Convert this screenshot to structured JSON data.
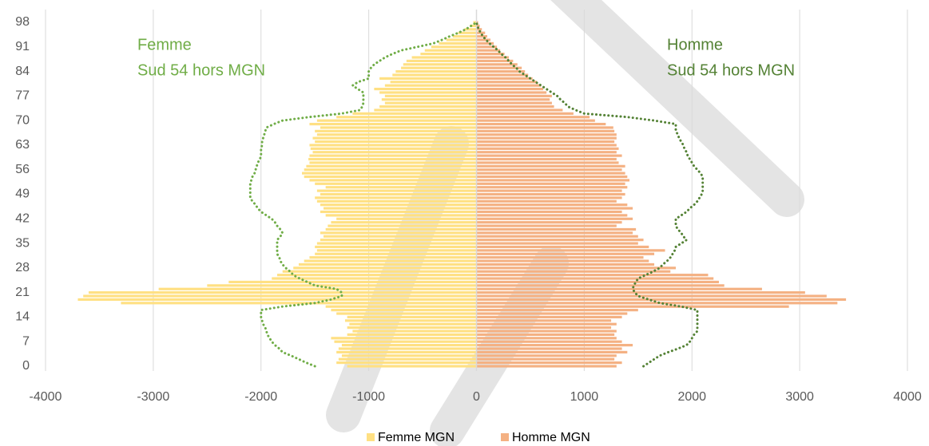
{
  "chart_data": {
    "type": "pyramid",
    "categories": [
      0,
      null,
      null,
      null,
      null,
      null,
      null,
      7,
      null,
      null,
      null,
      null,
      null,
      null,
      14,
      null,
      null,
      null,
      null,
      null,
      null,
      21,
      null,
      null,
      null,
      null,
      null,
      null,
      28,
      null,
      null,
      null,
      null,
      null,
      null,
      35,
      null,
      null,
      null,
      null,
      null,
      null,
      42,
      null,
      null,
      null,
      null,
      null,
      null,
      49,
      null,
      null,
      null,
      null,
      null,
      null,
      56,
      null,
      null,
      null,
      null,
      null,
      null,
      63,
      null,
      null,
      null,
      null,
      null,
      null,
      70,
      null,
      null,
      null,
      null,
      null,
      null,
      77,
      null,
      null,
      null,
      null,
      null,
      null,
      84,
      null,
      null,
      null,
      null,
      null,
      null,
      91,
      null,
      null,
      null,
      null,
      null,
      null,
      98
    ],
    "series": [
      {
        "name": "Femme MGN",
        "color": "#ffe083",
        "values": [
          -1200,
          -1300,
          -1280,
          -1250,
          -1300,
          -1280,
          -1250,
          -1320,
          -1350,
          -1200,
          -1150,
          -1200,
          -1180,
          -1220,
          -1200,
          -1300,
          -1350,
          -1400,
          -3300,
          -3700,
          -3650,
          -3600,
          -2950,
          -2500,
          -2300,
          -1900,
          -1850,
          -1800,
          -1700,
          -1650,
          -1600,
          -1550,
          -1500,
          -1480,
          -1500,
          -1480,
          -1450,
          -1420,
          -1450,
          -1400,
          -1380,
          -1350,
          -1300,
          -1400,
          -1450,
          -1420,
          -1450,
          -1480,
          -1500,
          -1450,
          -1480,
          -1400,
          -1500,
          -1550,
          -1600,
          -1620,
          -1600,
          -1580,
          -1550,
          -1560,
          -1550,
          -1520,
          -1540,
          -1550,
          -1500,
          -1520,
          -1480,
          -1500,
          -1450,
          -1550,
          -1480,
          -1300,
          -1150,
          -950,
          -900,
          -850,
          -880,
          -850,
          -900,
          -950,
          -850,
          -800,
          -900,
          -780,
          -750,
          -700,
          -680,
          -650,
          -600,
          -520,
          -480,
          -420,
          -350,
          -280,
          -220,
          -170,
          -110,
          -60,
          -30
        ]
      },
      {
        "name": "Homme MGN",
        "color": "#f4b183",
        "values": [
          1300,
          1350,
          1280,
          1300,
          1400,
          1350,
          1450,
          1350,
          1300,
          1280,
          1300,
          1250,
          1300,
          1250,
          1350,
          1400,
          1500,
          2900,
          3350,
          3430,
          3250,
          3050,
          2650,
          2300,
          2250,
          2200,
          2150,
          1800,
          1850,
          1650,
          1600,
          1550,
          1650,
          1750,
          1600,
          1500,
          1550,
          1500,
          1450,
          1480,
          1300,
          1350,
          1450,
          1400,
          1350,
          1450,
          1400,
          1300,
          1350,
          1380,
          1350,
          1400,
          1380,
          1420,
          1400,
          1380,
          1350,
          1380,
          1320,
          1300,
          1350,
          1300,
          1320,
          1300,
          1280,
          1300,
          1300,
          1280,
          1270,
          1200,
          1100,
          1050,
          900,
          800,
          720,
          700,
          680,
          700,
          650,
          620,
          600,
          560,
          520,
          480,
          450,
          420,
          380,
          340,
          300,
          260,
          220,
          190,
          160,
          130,
          100,
          80,
          50,
          30,
          15
        ]
      }
    ],
    "lines": [
      {
        "color": "#70ad47",
        "values": [
          -1500,
          -1580,
          -1650,
          -1720,
          -1800,
          -1830,
          -1870,
          -1900,
          -1920,
          -1940,
          -1950,
          -1960,
          -1980,
          -1990,
          -2000,
          -2000,
          -2000,
          -1800,
          -1500,
          -1350,
          -1250,
          -1250,
          -1300,
          -1500,
          -1570,
          -1640,
          -1700,
          -1730,
          -1770,
          -1800,
          -1820,
          -1830,
          -1850,
          -1850,
          -1850,
          -1850,
          -1850,
          -1820,
          -1800,
          -1820,
          -1850,
          -1870,
          -1900,
          -1950,
          -2000,
          -2030,
          -2050,
          -2080,
          -2100,
          -2100,
          -2100,
          -2100,
          -2100,
          -2090,
          -2080,
          -2060,
          -2050,
          -2040,
          -2030,
          -2010,
          -2000,
          -2000,
          -2000,
          -1990,
          -1990,
          -1980,
          -1970,
          -1960,
          -1950,
          -1880,
          -1800,
          -1550,
          -1250,
          -1080,
          -1060,
          -1050,
          -1050,
          -1050,
          -1050,
          -1100,
          -1150,
          -1100,
          -1000,
          -1000,
          -1000,
          -980,
          -950,
          -900,
          -850,
          -780,
          -700,
          -550,
          -400,
          -320,
          -250,
          -170,
          -100,
          -50,
          0
        ]
      },
      {
        "color": "#548235",
        "values": [
          1550,
          1600,
          1650,
          1700,
          1780,
          1870,
          1950,
          1980,
          2000,
          2020,
          2050,
          2050,
          2050,
          2050,
          2050,
          2050,
          2050,
          1900,
          1700,
          1600,
          1500,
          1470,
          1450,
          1460,
          1480,
          1500,
          1570,
          1640,
          1700,
          1730,
          1770,
          1800,
          1820,
          1840,
          1850,
          1900,
          1950,
          1920,
          1900,
          1870,
          1850,
          1850,
          1850,
          1900,
          1950,
          1980,
          2020,
          2050,
          2070,
          2090,
          2100,
          2100,
          2100,
          2100,
          2100,
          2080,
          2050,
          2020,
          2000,
          1980,
          1960,
          1950,
          1930,
          1920,
          1900,
          1880,
          1870,
          1850,
          1850,
          1850,
          1650,
          1400,
          1000,
          920,
          850,
          820,
          780,
          750,
          700,
          650,
          600,
          550,
          500,
          450,
          400,
          370,
          330,
          300,
          270,
          230,
          200,
          160,
          120,
          90,
          60,
          40,
          20,
          10,
          0
        ]
      }
    ],
    "annotations": [
      {
        "lines": [
          "Femme",
          "Sud 54 hors MGN"
        ],
        "color": "#70ad47"
      },
      {
        "lines": [
          "Homme",
          "Sud 54 hors MGN"
        ],
        "color": "#548235"
      }
    ],
    "xlim": [
      -4000,
      4000
    ],
    "xticks": [
      -4000,
      -3000,
      -2000,
      -1000,
      0,
      1000,
      2000,
      3000,
      4000
    ],
    "grid": true
  }
}
